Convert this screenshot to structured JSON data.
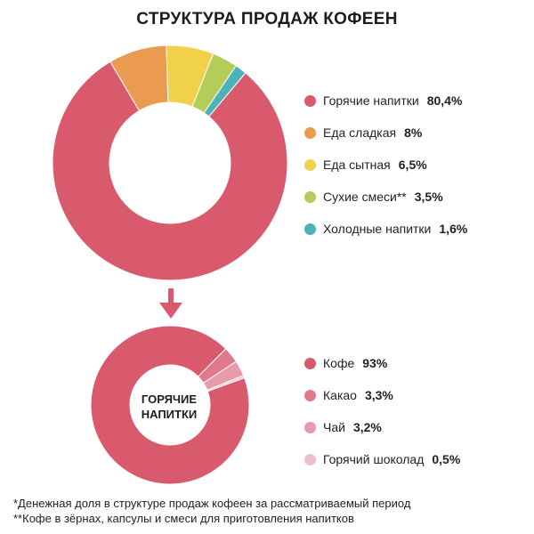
{
  "title": "СТРУКТУРА ПРОДАЖ КОФЕЕН",
  "chart_data": [
    {
      "type": "pie",
      "title": "СТРУКТУРА ПРОДАЖ КОФЕЕН",
      "donut": true,
      "start_angle_deg": 50,
      "direction": "counterclockwise",
      "series": [
        {
          "label": "Горячие напитки",
          "value": 80.4,
          "display": "80,4%",
          "color": "#d85a6c"
        },
        {
          "label": "Еда сладкая",
          "value": 8,
          "display": "8%",
          "color": "#eb9b4f"
        },
        {
          "label": "Еда сытная",
          "value": 6.5,
          "display": "6,5%",
          "color": "#f1d04a"
        },
        {
          "label": "Сухие смеси**",
          "value": 3.5,
          "display": "3,5%",
          "color": "#b3cd58"
        },
        {
          "label": "Холодные напитки",
          "value": 1.6,
          "display": "1,6%",
          "color": "#4db2b9"
        }
      ]
    },
    {
      "type": "pie",
      "title": "ГОРЯЧИЕ НАПИТКИ",
      "donut": true,
      "start_angle_deg": 20,
      "direction": "counterclockwise",
      "series": [
        {
          "label": "Кофе",
          "value": 93,
          "display": "93%",
          "color": "#d85a6c"
        },
        {
          "label": "Какао",
          "value": 3.3,
          "display": "3,3%",
          "color": "#e07a8a"
        },
        {
          "label": "Чай",
          "value": 3.2,
          "display": "3,2%",
          "color": "#e89aaa"
        },
        {
          "label": "Горячий шоколад",
          "value": 0.5,
          "display": "0,5%",
          "color": "#f0bfcf"
        }
      ]
    }
  ],
  "arrow": {
    "color": "#d85a6c"
  },
  "center_label": [
    "ГОРЯЧИЕ",
    "НАПИТКИ"
  ],
  "footnotes": [
    "*Денежная доля в структуре продаж кофеен за рассматриваемый период",
    "**Кофе в зёрнах, капсулы и смеси для приготовления напитков"
  ]
}
